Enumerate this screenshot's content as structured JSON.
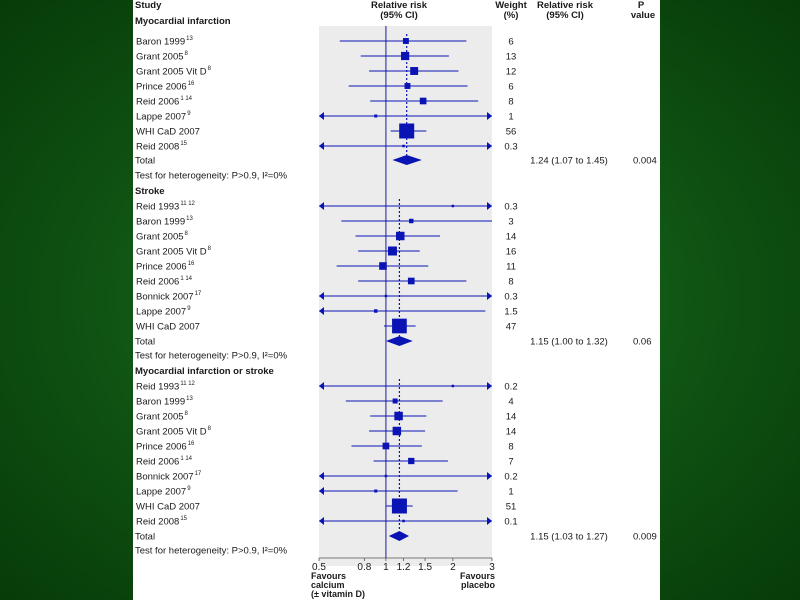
{
  "headers": {
    "study": "Study",
    "rr_line1": "Relative risk",
    "rr_line2": "(95% CI)",
    "weight_line1": "Weight",
    "weight_line2": "(%)",
    "rrtext_line1": "Relative risk",
    "rrtext_line2": "(95% CI)",
    "p_line1": "P",
    "p_line2": "value"
  },
  "favours": {
    "left_line1": "Favours",
    "left_line2": "calcium",
    "left_line3": "(± vitamin D)",
    "right_line1": "Favours",
    "right_line2": "placebo"
  },
  "colors": {
    "marker": "#0a14b4",
    "axis_line": "#1a1aa0",
    "band": "#ececec"
  },
  "chart_data": {
    "type": "forest",
    "x_scale": "log",
    "xlim": [
      0.5,
      3
    ],
    "x_ticks": [
      0.5,
      0.8,
      1,
      1.2,
      1.5,
      2,
      3
    ],
    "x_tick_labels": [
      "0.5",
      "0.8",
      "1",
      "1.2",
      "1.5",
      "2",
      "3"
    ],
    "null_line": 1,
    "sections": [
      {
        "title": "Myocardial infarction",
        "studies": [
          {
            "name": "Baron 1999",
            "ref": "13",
            "rr": 1.23,
            "lo": 0.62,
            "hi": 2.3,
            "weight": "6",
            "arrow_left": false,
            "arrow_right": false
          },
          {
            "name": "Grant 2005",
            "ref": "8",
            "rr": 1.22,
            "lo": 0.77,
            "hi": 1.92,
            "weight": "13",
            "arrow_left": false,
            "arrow_right": false
          },
          {
            "name": "Grant 2005 Vit D",
            "ref": "8",
            "rr": 1.34,
            "lo": 0.84,
            "hi": 2.12,
            "weight": "12",
            "arrow_left": false,
            "arrow_right": false
          },
          {
            "name": "Prince 2006",
            "ref": "16",
            "rr": 1.25,
            "lo": 0.68,
            "hi": 2.33,
            "weight": "6",
            "arrow_left": false,
            "arrow_right": false
          },
          {
            "name": "Reid 2006",
            "ref": "1 14",
            "rr": 1.47,
            "lo": 0.85,
            "hi": 2.6,
            "weight": "8",
            "arrow_left": false,
            "arrow_right": false
          },
          {
            "name": "Lappe 2007",
            "ref": "9",
            "rr": 0.9,
            "lo": 0.5,
            "hi": 3,
            "weight": "1",
            "arrow_left": true,
            "arrow_right": true
          },
          {
            "name": "WHI CaD 2007",
            "ref": "",
            "rr": 1.24,
            "lo": 1.05,
            "hi": 1.52,
            "weight": "56",
            "arrow_left": false,
            "arrow_right": false
          },
          {
            "name": "Reid 2008",
            "ref": "15",
            "rr": 1.2,
            "lo": 0.5,
            "hi": 3,
            "weight": "0.3",
            "arrow_left": true,
            "arrow_right": true
          }
        ],
        "total": {
          "label": "Total",
          "rr": 1.24,
          "lo": 1.07,
          "hi": 1.45,
          "rr_text": "1.24 (1.07 to 1.45)",
          "p": "0.004"
        },
        "heterogeneity": "Test for heterogeneity: P>0.9, I²=0%"
      },
      {
        "title": "Stroke",
        "studies": [
          {
            "name": "Reid 1993",
            "ref": "11 12",
            "rr": 2.0,
            "lo": 0.5,
            "hi": 3,
            "weight": "0.3",
            "arrow_left": true,
            "arrow_right": true
          },
          {
            "name": "Baron 1999",
            "ref": "13",
            "rr": 1.3,
            "lo": 0.63,
            "hi": 3,
            "weight": "3",
            "arrow_left": false,
            "arrow_right": false
          },
          {
            "name": "Grant 2005",
            "ref": "8",
            "rr": 1.16,
            "lo": 0.73,
            "hi": 1.75,
            "weight": "14",
            "arrow_left": false,
            "arrow_right": false
          },
          {
            "name": "Grant 2005 Vit D",
            "ref": "8",
            "rr": 1.07,
            "lo": 0.75,
            "hi": 1.42,
            "weight": "16",
            "arrow_left": false,
            "arrow_right": false
          },
          {
            "name": "Prince 2006",
            "ref": "16",
            "rr": 0.97,
            "lo": 0.6,
            "hi": 1.55,
            "weight": "11",
            "arrow_left": false,
            "arrow_right": false
          },
          {
            "name": "Reid 2006",
            "ref": "1 14",
            "rr": 1.3,
            "lo": 0.75,
            "hi": 2.3,
            "weight": "8",
            "arrow_left": false,
            "arrow_right": false
          },
          {
            "name": "Bonnick 2007",
            "ref": "17",
            "rr": 1.0,
            "lo": 0.5,
            "hi": 3,
            "weight": "0.3",
            "arrow_left": true,
            "arrow_right": true
          },
          {
            "name": "Lappe 2007",
            "ref": "9",
            "rr": 0.9,
            "lo": 0.5,
            "hi": 2.8,
            "weight": "1.5",
            "arrow_left": true,
            "arrow_right": false
          },
          {
            "name": "WHI CaD 2007",
            "ref": "",
            "rr": 1.15,
            "lo": 0.98,
            "hi": 1.36,
            "weight": "47",
            "arrow_left": false,
            "arrow_right": false
          }
        ],
        "total": {
          "label": "Total",
          "rr": 1.15,
          "lo": 1.0,
          "hi": 1.32,
          "rr_text": "1.15 (1.00 to 1.32)",
          "p": "0.06"
        },
        "heterogeneity": "Test for heterogeneity: P>0.9, I²=0%"
      },
      {
        "title": "Myocardial infarction or stroke",
        "studies": [
          {
            "name": "Reid 1993",
            "ref": "11 12",
            "rr": 2.0,
            "lo": 0.5,
            "hi": 3,
            "weight": "0.2",
            "arrow_left": true,
            "arrow_right": true
          },
          {
            "name": "Baron 1999",
            "ref": "13",
            "rr": 1.1,
            "lo": 0.66,
            "hi": 1.8,
            "weight": "4",
            "arrow_left": false,
            "arrow_right": false
          },
          {
            "name": "Grant 2005",
            "ref": "8",
            "rr": 1.14,
            "lo": 0.85,
            "hi": 1.52,
            "weight": "14",
            "arrow_left": false,
            "arrow_right": false
          },
          {
            "name": "Grant 2005 Vit D",
            "ref": "8",
            "rr": 1.12,
            "lo": 0.84,
            "hi": 1.5,
            "weight": "14",
            "arrow_left": false,
            "arrow_right": false
          },
          {
            "name": "Prince 2006",
            "ref": "16",
            "rr": 1.0,
            "lo": 0.7,
            "hi": 1.45,
            "weight": "8",
            "arrow_left": false,
            "arrow_right": false
          },
          {
            "name": "Reid 2006",
            "ref": "1 14",
            "rr": 1.3,
            "lo": 0.88,
            "hi": 1.9,
            "weight": "7",
            "arrow_left": false,
            "arrow_right": false
          },
          {
            "name": "Bonnick 2007",
            "ref": "17",
            "rr": 1.0,
            "lo": 0.5,
            "hi": 3,
            "weight": "0.2",
            "arrow_left": true,
            "arrow_right": true
          },
          {
            "name": "Lappe 2007",
            "ref": "9",
            "rr": 0.9,
            "lo": 0.5,
            "hi": 2.1,
            "weight": "1",
            "arrow_left": true,
            "arrow_right": false
          },
          {
            "name": "WHI CaD 2007",
            "ref": "",
            "rr": 1.15,
            "lo": 1.0,
            "hi": 1.32,
            "weight": "51",
            "arrow_left": false,
            "arrow_right": false
          },
          {
            "name": "Reid 2008",
            "ref": "15",
            "rr": 1.2,
            "lo": 0.5,
            "hi": 3,
            "weight": "0.1",
            "arrow_left": true,
            "arrow_right": true
          }
        ],
        "total": {
          "label": "Total",
          "rr": 1.15,
          "lo": 1.03,
          "hi": 1.27,
          "rr_text": "1.15 (1.03 to 1.27)",
          "p": "0.009"
        },
        "heterogeneity": "Test for heterogeneity: P>0.9, I²=0%"
      }
    ]
  }
}
